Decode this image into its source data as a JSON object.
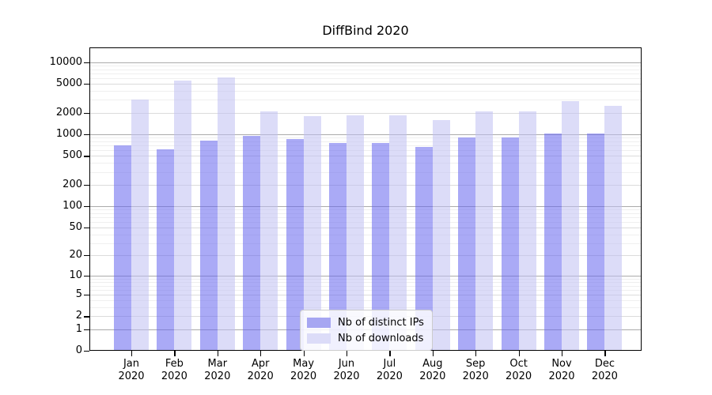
{
  "chart_data": {
    "type": "bar",
    "title": "DiffBind 2020",
    "scale": "log1p",
    "categories": [
      "Jan",
      "Feb",
      "Mar",
      "Apr",
      "May",
      "Jun",
      "Jul",
      "Aug",
      "Sep",
      "Oct",
      "Nov",
      "Dec"
    ],
    "year_label": "2020",
    "series": [
      {
        "name": "Nb of distinct IPs",
        "swatch_color": "#a6a6f2",
        "fill": "rgba(100,100,238,0.55)",
        "values": [
          700,
          620,
          810,
          960,
          860,
          760,
          755,
          670,
          895,
          910,
          1020,
          1020
        ]
      },
      {
        "name": "Nb of downloads",
        "swatch_color": "#dcdcf8",
        "fill": "rgba(191,191,242,0.55)",
        "values": [
          3000,
          5600,
          6200,
          2100,
          1800,
          1810,
          1830,
          1590,
          2100,
          2080,
          2900,
          2450
        ]
      }
    ],
    "y_ticks": [
      10000,
      5000,
      2000,
      1000,
      500,
      200,
      100,
      50,
      20,
      10,
      5,
      2,
      1,
      0
    ],
    "ylim": [
      0,
      16000
    ],
    "grid": true,
    "legend_position": "bottom-center",
    "colors": {
      "major_grid": "#ababab",
      "mid_grid": "#dbdbdb",
      "minor_grid": "#efefef",
      "spine": "#000000",
      "background": "#ffffff"
    }
  }
}
